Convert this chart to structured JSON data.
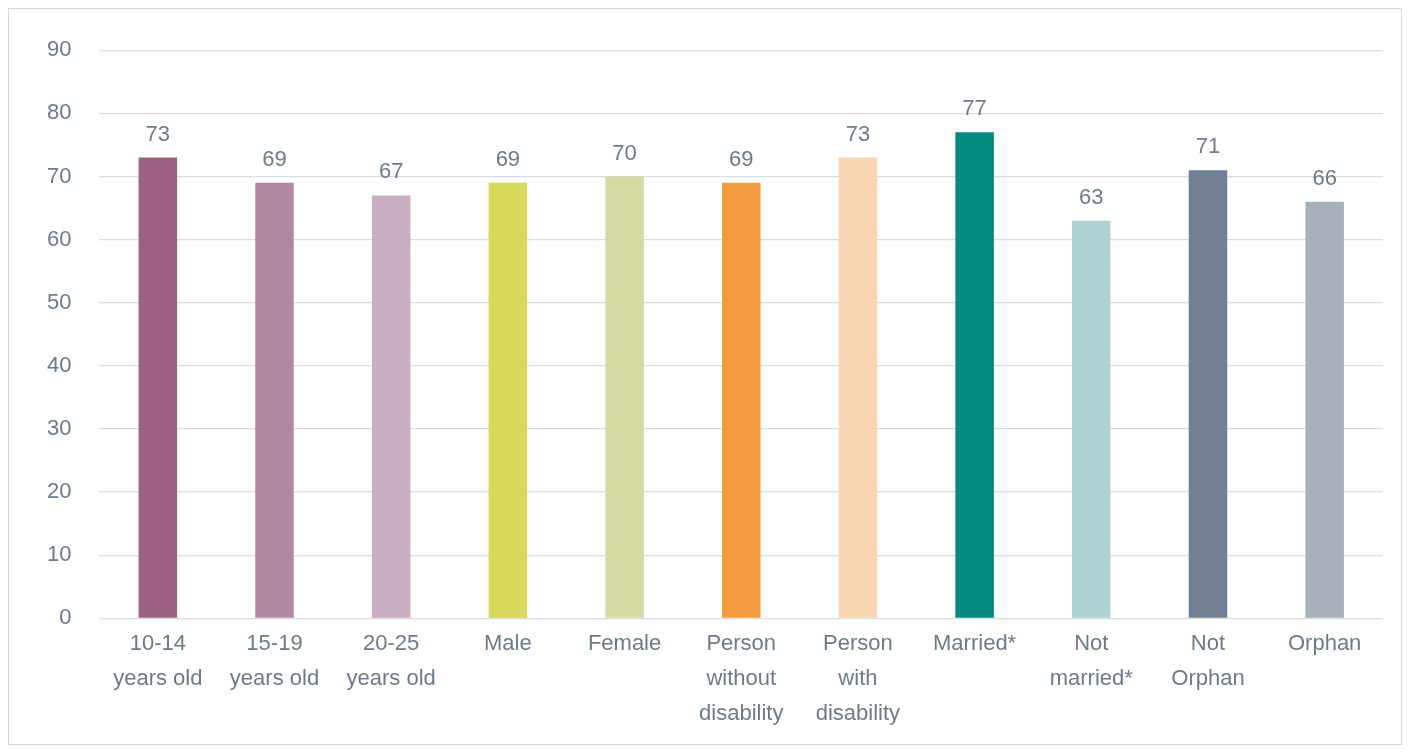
{
  "chart_data": {
    "type": "bar",
    "categories": [
      "10-14 years old",
      "15-19 years old",
      "20-25 years old",
      "Male",
      "Female",
      "Person without disability",
      "Person with disability",
      "Married*",
      "Not married*",
      "Not Orphan",
      "Orphan"
    ],
    "values": [
      73,
      69,
      67,
      69,
      70,
      69,
      73,
      77,
      63,
      71,
      66
    ],
    "colors": [
      "#9a6081",
      "#b089a1",
      "#c9afc1",
      "#d6d95a",
      "#d7d9a5",
      "#f49a3f",
      "#f9d6b1",
      "#008a82",
      "#b1d2d3",
      "#718193",
      "#a8b0b9"
    ],
    "ylim": [
      0,
      90
    ],
    "yticks": [
      0,
      10,
      20,
      30,
      40,
      50,
      60,
      70,
      80,
      90
    ],
    "grid": "y",
    "data_labels": true,
    "legend": false
  }
}
